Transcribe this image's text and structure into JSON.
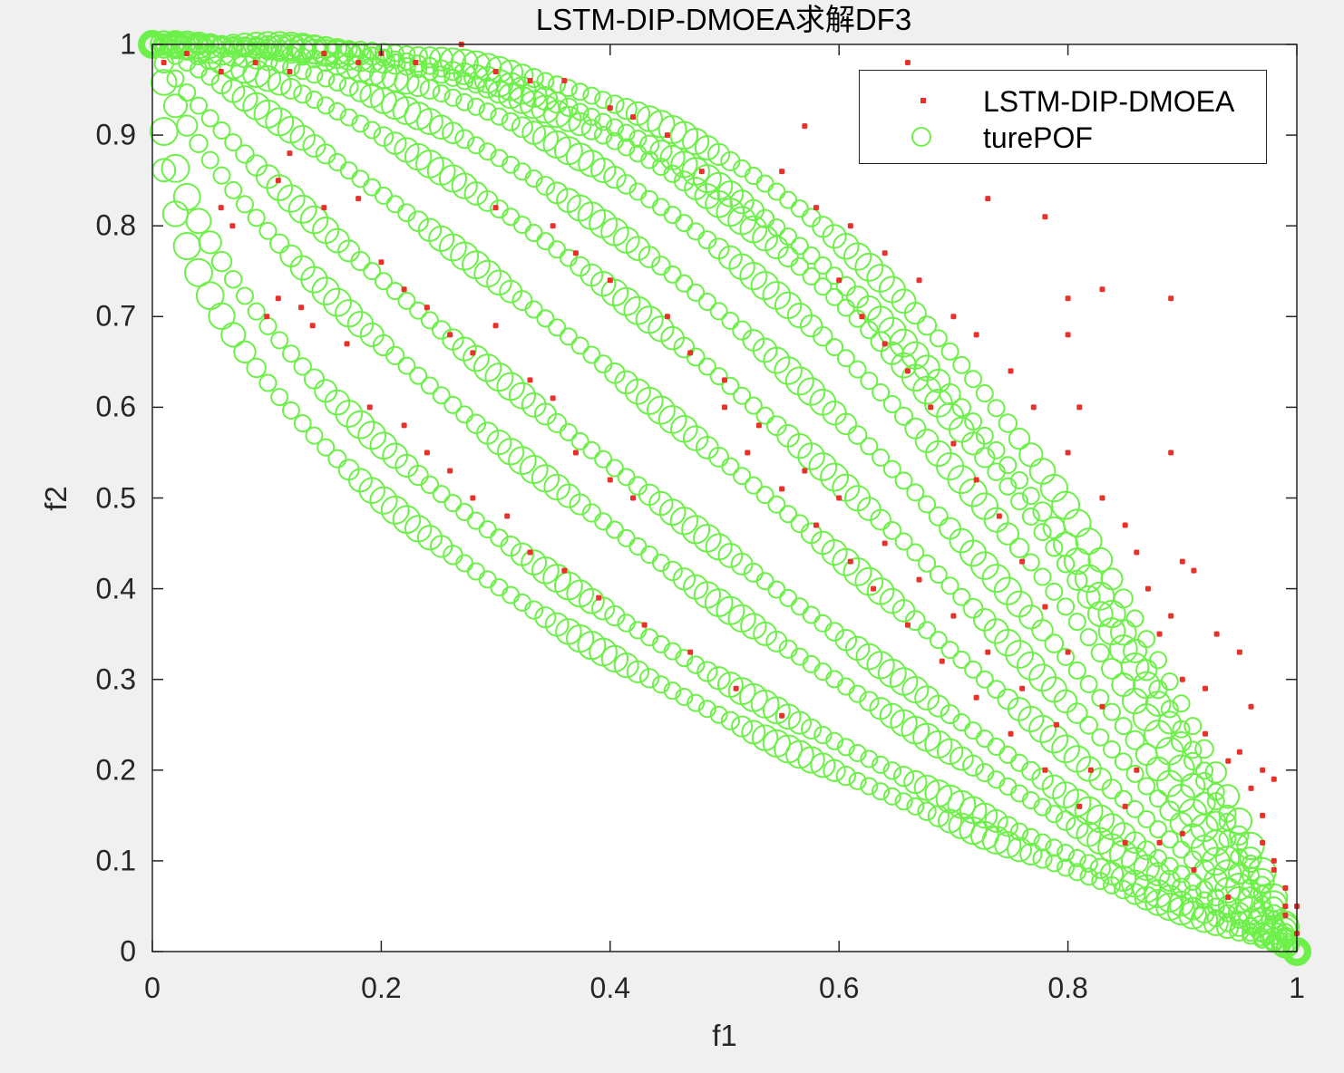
{
  "figure": {
    "title": "LSTM-DIP-DMOEA求解DF3",
    "xlabel": "f1",
    "ylabel": "f2",
    "xticks": [
      "0",
      "0.2",
      "0.4",
      "0.6",
      "0.8",
      "1"
    ],
    "yticks": [
      "0",
      "0.1",
      "0.2",
      "0.3",
      "0.4",
      "0.5",
      "0.6",
      "0.7",
      "0.8",
      "0.9",
      "1"
    ],
    "legend": {
      "series1": "LSTM-DIP-DMOEA",
      "series2": "turePOF"
    },
    "colors": {
      "scatter": "#e8312b",
      "pof": "#6ef04a",
      "background": "#f0f0f0",
      "axes": "#262626"
    }
  },
  "chart_data": {
    "type": "scatter",
    "title": "LSTM-DIP-DMOEA求解DF3",
    "xlabel": "f1",
    "ylabel": "f2",
    "xlim": [
      0,
      1
    ],
    "ylim": [
      0,
      1
    ],
    "grid": false,
    "legend_position": "northeast",
    "legend": [
      "LSTM-DIP-DMOEA",
      "turePOF"
    ],
    "series": [
      {
        "name": "turePOF",
        "marker": "circle",
        "color": "#6ef04a",
        "description": "Family of fronts f2 = 1 - f1^H, 100 points each",
        "H_values": [
          0.43,
          0.51,
          0.69,
          0.84,
          1.12,
          1.43,
          1.74,
          2.12,
          2.47,
          2.64,
          3.0
        ],
        "points_per_front": 100
      },
      {
        "name": "LSTM-DIP-DMOEA",
        "marker": "point",
        "color": "#e8312b",
        "points": [
          [
            0.01,
            0.98
          ],
          [
            0.03,
            0.99
          ],
          [
            0.06,
            0.97
          ],
          [
            0.09,
            0.98
          ],
          [
            0.12,
            0.97
          ],
          [
            0.15,
            0.99
          ],
          [
            0.18,
            0.98
          ],
          [
            0.2,
            0.99
          ],
          [
            0.23,
            0.98
          ],
          [
            0.27,
            1.0
          ],
          [
            0.3,
            0.97
          ],
          [
            0.33,
            0.96
          ],
          [
            0.36,
            0.96
          ],
          [
            0.4,
            0.93
          ],
          [
            0.42,
            0.92
          ],
          [
            0.45,
            0.9
          ],
          [
            0.48,
            0.86
          ],
          [
            0.06,
            0.82
          ],
          [
            0.07,
            0.8
          ],
          [
            0.11,
            0.85
          ],
          [
            0.12,
            0.88
          ],
          [
            0.15,
            0.82
          ],
          [
            0.18,
            0.83
          ],
          [
            0.1,
            0.7
          ],
          [
            0.11,
            0.72
          ],
          [
            0.13,
            0.71
          ],
          [
            0.14,
            0.69
          ],
          [
            0.17,
            0.67
          ],
          [
            0.2,
            0.76
          ],
          [
            0.22,
            0.73
          ],
          [
            0.24,
            0.71
          ],
          [
            0.26,
            0.68
          ],
          [
            0.28,
            0.66
          ],
          [
            0.3,
            0.69
          ],
          [
            0.33,
            0.63
          ],
          [
            0.35,
            0.61
          ],
          [
            0.37,
            0.55
          ],
          [
            0.4,
            0.52
          ],
          [
            0.42,
            0.5
          ],
          [
            0.19,
            0.6
          ],
          [
            0.22,
            0.58
          ],
          [
            0.24,
            0.55
          ],
          [
            0.26,
            0.53
          ],
          [
            0.28,
            0.5
          ],
          [
            0.31,
            0.48
          ],
          [
            0.33,
            0.44
          ],
          [
            0.36,
            0.42
          ],
          [
            0.39,
            0.39
          ],
          [
            0.43,
            0.36
          ],
          [
            0.47,
            0.33
          ],
          [
            0.51,
            0.29
          ],
          [
            0.55,
            0.26
          ],
          [
            0.5,
            0.6
          ],
          [
            0.52,
            0.55
          ],
          [
            0.55,
            0.51
          ],
          [
            0.58,
            0.47
          ],
          [
            0.61,
            0.43
          ],
          [
            0.63,
            0.4
          ],
          [
            0.66,
            0.36
          ],
          [
            0.69,
            0.32
          ],
          [
            0.72,
            0.28
          ],
          [
            0.75,
            0.24
          ],
          [
            0.78,
            0.2
          ],
          [
            0.81,
            0.16
          ],
          [
            0.85,
            0.12
          ],
          [
            0.6,
            0.74
          ],
          [
            0.62,
            0.7
          ],
          [
            0.64,
            0.67
          ],
          [
            0.66,
            0.64
          ],
          [
            0.68,
            0.6
          ],
          [
            0.7,
            0.56
          ],
          [
            0.72,
            0.52
          ],
          [
            0.74,
            0.48
          ],
          [
            0.76,
            0.43
          ],
          [
            0.78,
            0.38
          ],
          [
            0.8,
            0.33
          ],
          [
            0.83,
            0.27
          ],
          [
            0.86,
            0.2
          ],
          [
            0.9,
            0.13
          ],
          [
            0.55,
            0.86
          ],
          [
            0.58,
            0.82
          ],
          [
            0.61,
            0.8
          ],
          [
            0.64,
            0.77
          ],
          [
            0.67,
            0.74
          ],
          [
            0.7,
            0.7
          ],
          [
            0.72,
            0.68
          ],
          [
            0.75,
            0.64
          ],
          [
            0.77,
            0.6
          ],
          [
            0.8,
            0.55
          ],
          [
            0.83,
            0.5
          ],
          [
            0.86,
            0.44
          ],
          [
            0.89,
            0.37
          ],
          [
            0.92,
            0.29
          ],
          [
            0.95,
            0.22
          ],
          [
            0.97,
            0.15
          ],
          [
            0.98,
            0.09
          ],
          [
            0.99,
            0.05
          ],
          [
            1.0,
            0.02
          ],
          [
            0.57,
            0.91
          ],
          [
            0.66,
            0.98
          ],
          [
            0.73,
            0.83
          ],
          [
            0.78,
            0.81
          ],
          [
            0.8,
            0.72
          ],
          [
            0.8,
            0.68
          ],
          [
            0.81,
            0.6
          ],
          [
            0.83,
            0.73
          ],
          [
            0.89,
            0.72
          ],
          [
            0.89,
            0.55
          ],
          [
            0.9,
            0.43
          ],
          [
            0.91,
            0.42
          ],
          [
            0.93,
            0.35
          ],
          [
            0.95,
            0.33
          ],
          [
            0.96,
            0.27
          ],
          [
            0.97,
            0.2
          ],
          [
            0.98,
            0.19
          ],
          [
            0.85,
            0.47
          ],
          [
            0.87,
            0.4
          ],
          [
            0.88,
            0.35
          ],
          [
            0.9,
            0.3
          ],
          [
            0.92,
            0.24
          ],
          [
            0.94,
            0.21
          ],
          [
            0.96,
            0.18
          ],
          [
            0.97,
            0.12
          ],
          [
            0.98,
            0.1
          ],
          [
            0.99,
            0.07
          ],
          [
            0.99,
            0.04
          ],
          [
            1.0,
            0.05
          ],
          [
            0.3,
            0.82
          ],
          [
            0.35,
            0.8
          ],
          [
            0.37,
            0.77
          ],
          [
            0.4,
            0.74
          ],
          [
            0.45,
            0.7
          ],
          [
            0.47,
            0.66
          ],
          [
            0.5,
            0.63
          ],
          [
            0.53,
            0.58
          ],
          [
            0.57,
            0.53
          ],
          [
            0.6,
            0.5
          ],
          [
            0.64,
            0.45
          ],
          [
            0.67,
            0.41
          ],
          [
            0.7,
            0.37
          ],
          [
            0.73,
            0.33
          ],
          [
            0.76,
            0.29
          ],
          [
            0.79,
            0.25
          ],
          [
            0.82,
            0.2
          ],
          [
            0.85,
            0.16
          ],
          [
            0.88,
            0.12
          ],
          [
            0.91,
            0.09
          ],
          [
            0.94,
            0.06
          ]
        ]
      }
    ]
  }
}
